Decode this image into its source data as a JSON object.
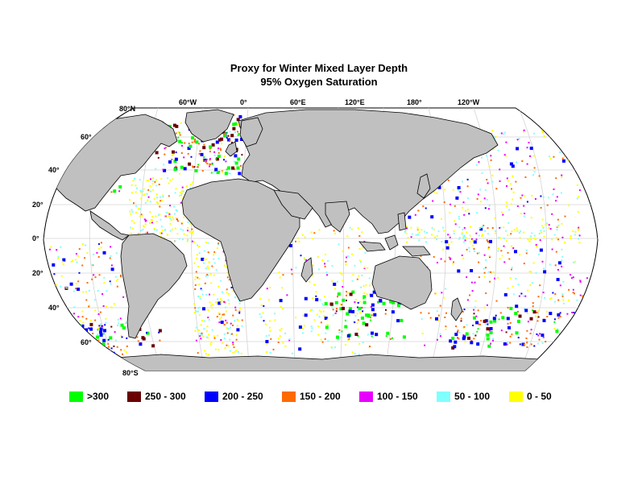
{
  "title": "Proxy for Winter Mixed Layer Depth",
  "subtitle": "95% Oxygen Saturation",
  "map": {
    "projection": "robinson",
    "land_color": "#c0c0c0",
    "ocean_color": "#ffffff",
    "grid_color": "#d4d4d4",
    "lon_labels": [
      "60°W",
      "0°",
      "60°E",
      "120°E",
      "180°",
      "120°W"
    ],
    "lat_labels": [
      "80°N",
      "60°",
      "40°",
      "20°",
      "0°",
      "20°",
      "40°",
      "60°",
      "80°S"
    ]
  },
  "legend": [
    {
      "label": ">300",
      "color": "#00ff00"
    },
    {
      "label": "250 - 300",
      "color": "#6b0000"
    },
    {
      "label": "200 - 250",
      "color": "#0000ff"
    },
    {
      "label": "150 - 200",
      "color": "#ff6a00"
    },
    {
      "label": "100 - 150",
      "color": "#e800ff"
    },
    {
      "label": "50 - 100",
      "color": "#80ffff"
    },
    {
      "label": "0 - 50",
      "color": "#ffff00"
    }
  ]
}
